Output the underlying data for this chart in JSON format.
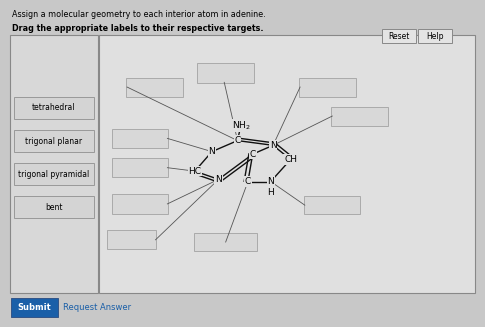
{
  "title1": "Assign a molecular geometry to each interior atom in adenine.",
  "title2": "Drag the appropriate labels to their respective targets.",
  "bg_color": "#c8c8c8",
  "main_panel_color": "#e0e0e0",
  "left_panel_color": "#d8d8d8",
  "box_fill": "#d0d0d0",
  "box_edge": "#aaaaaa",
  "label_boxes": [
    "tetrahedral",
    "trigonal planar",
    "trigonal pyramidal",
    "bent"
  ],
  "buttons": [
    "Reset",
    "Help"
  ],
  "submit_btn": "Submit",
  "request_btn": "Request Answer",
  "atoms": {
    "NH2": {
      "label": "NH₂",
      "fx": 0.495,
      "fy": 0.618
    },
    "C_top": {
      "label": "C",
      "fx": 0.488,
      "fy": 0.57
    },
    "N_left": {
      "label": "N",
      "fx": 0.434,
      "fy": 0.535
    },
    "C_cent": {
      "label": "C",
      "fx": 0.52,
      "fy": 0.527
    },
    "N_rt": {
      "label": "N",
      "fx": 0.563,
      "fy": 0.555
    },
    "CH": {
      "label": "CH",
      "fx": 0.6,
      "fy": 0.51
    },
    "HC": {
      "label": "HC",
      "fx": 0.398,
      "fy": 0.473
    },
    "N_bl": {
      "label": "N",
      "fx": 0.448,
      "fy": 0.447
    },
    "C_bot": {
      "label": "C",
      "fx": 0.51,
      "fy": 0.44
    },
    "N_br": {
      "label": "N",
      "fx": 0.558,
      "fy": 0.44
    },
    "H": {
      "label": "H",
      "fx": 0.558,
      "fy": 0.405
    }
  },
  "answer_boxes": [
    {
      "label": "box_UL",
      "fx": 0.255,
      "fy": 0.71,
      "fw": 0.115,
      "fh": 0.058
    },
    {
      "label": "box_UC",
      "fx": 0.405,
      "fy": 0.755,
      "fw": 0.115,
      "fh": 0.058
    },
    {
      "label": "box_UR1",
      "fx": 0.62,
      "fy": 0.71,
      "fw": 0.115,
      "fh": 0.058
    },
    {
      "label": "box_UR2",
      "fx": 0.688,
      "fy": 0.618,
      "fw": 0.115,
      "fh": 0.058
    },
    {
      "label": "box_ML",
      "fx": 0.225,
      "fy": 0.548,
      "fw": 0.115,
      "fh": 0.058
    },
    {
      "label": "box_ML2",
      "fx": 0.225,
      "fy": 0.455,
      "fw": 0.115,
      "fh": 0.058
    },
    {
      "label": "box_LL",
      "fx": 0.225,
      "fy": 0.34,
      "fw": 0.115,
      "fh": 0.058
    },
    {
      "label": "box_BL",
      "fx": 0.215,
      "fy": 0.228,
      "fw": 0.1,
      "fh": 0.055
    },
    {
      "label": "box_BC",
      "fx": 0.398,
      "fy": 0.22,
      "fw": 0.13,
      "fh": 0.055
    },
    {
      "label": "box_BR",
      "fx": 0.63,
      "fy": 0.338,
      "fw": 0.115,
      "fh": 0.055
    }
  ],
  "connector_lines": [
    {
      "from_atom": "C_top",
      "to_box": "box_UL",
      "bx": 0.255,
      "by": 0.74
    },
    {
      "from_atom": "C_top",
      "to_box": "box_UC",
      "bx": 0.46,
      "by": 0.755
    },
    {
      "from_atom": "N_rt",
      "to_box": "box_UR1",
      "bx": 0.62,
      "by": 0.74
    },
    {
      "from_atom": "N_rt",
      "to_box": "box_UR2",
      "bx": 0.688,
      "by": 0.648
    },
    {
      "from_atom": "N_left",
      "to_box": "box_ML",
      "bx": 0.34,
      "by": 0.577
    },
    {
      "from_atom": "HC",
      "to_box": "box_ML2",
      "bx": 0.34,
      "by": 0.484
    },
    {
      "from_atom": "N_bl",
      "to_box": "box_LL",
      "bx": 0.34,
      "by": 0.369
    },
    {
      "from_atom": "N_bl",
      "to_box": "box_BL",
      "bx": 0.315,
      "by": 0.255
    },
    {
      "from_atom": "C_bot",
      "to_box": "box_BC",
      "bx": 0.463,
      "by": 0.248
    },
    {
      "from_atom": "N_br",
      "to_box": "box_BR",
      "bx": 0.63,
      "by": 0.365
    }
  ]
}
